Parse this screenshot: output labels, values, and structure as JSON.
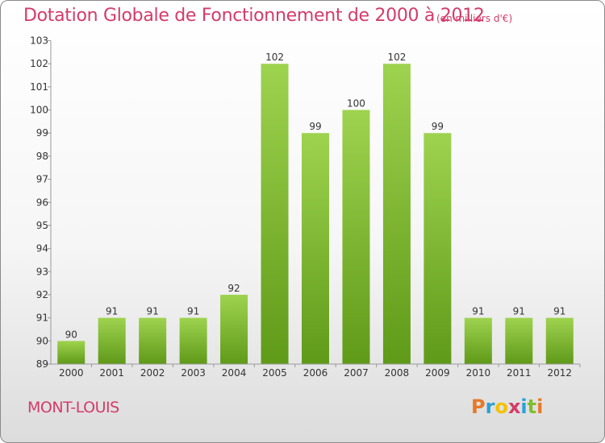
{
  "chart_data": {
    "type": "bar",
    "title": "Dotation Globale de Fonctionnement de 2000 à 2012",
    "unit_label": "(en milliers d'€)",
    "categories": [
      "2000",
      "2001",
      "2002",
      "2003",
      "2004",
      "2005",
      "2006",
      "2007",
      "2008",
      "2009",
      "2010",
      "2011",
      "2012"
    ],
    "values": [
      90,
      91,
      91,
      91,
      92,
      102,
      99,
      100,
      102,
      99,
      91,
      91,
      91
    ],
    "ylim": [
      89,
      103
    ],
    "yticks": [
      "89",
      "90",
      "91",
      "92",
      "93",
      "94",
      "95",
      "96",
      "97",
      "98",
      "99",
      "100",
      "101",
      "102",
      "103"
    ],
    "grid": false,
    "bar_color": "#7fbe2e"
  },
  "location": "MONT-LOUIS",
  "brand": {
    "letters": [
      "P",
      "r",
      "o",
      "x",
      "i",
      "t",
      "i"
    ],
    "colors": [
      "#e8782a",
      "#2aa0d8",
      "#f2c200",
      "#d43b6a",
      "#2aa0d8",
      "#7fbe2e",
      "#e8782a"
    ]
  }
}
